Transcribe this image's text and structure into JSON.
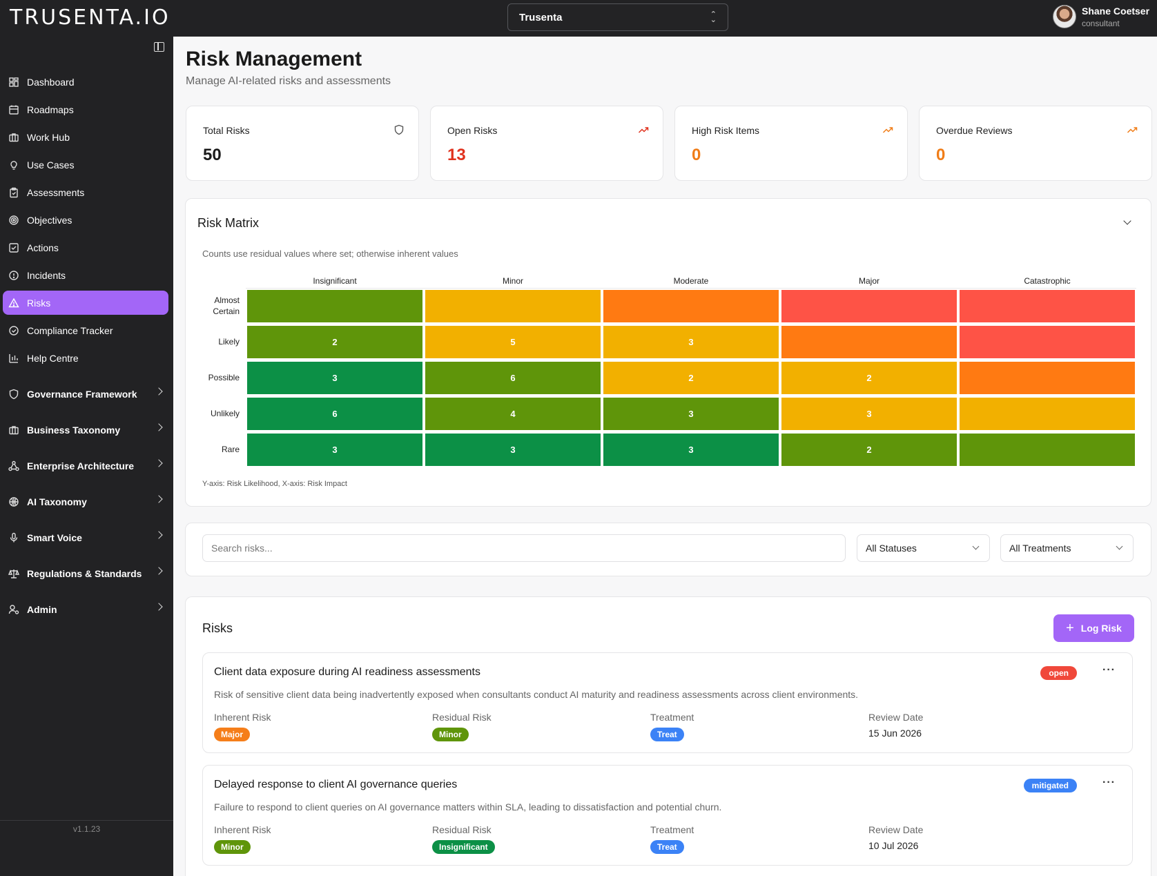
{
  "app": {
    "logo": "TRUSENTA.IO",
    "org_selector": "Trusenta",
    "version": "v1.1.23"
  },
  "user": {
    "name": "Shane Coetser",
    "role": "consultant"
  },
  "sidebar": {
    "items": [
      {
        "label": "Dashboard",
        "icon": "dashboard-icon"
      },
      {
        "label": "Roadmaps",
        "icon": "calendar-icon"
      },
      {
        "label": "Work Hub",
        "icon": "briefcase-icon"
      },
      {
        "label": "Use Cases",
        "icon": "lightbulb-icon"
      },
      {
        "label": "Assessments",
        "icon": "clipboard-icon"
      },
      {
        "label": "Objectives",
        "icon": "target-icon"
      },
      {
        "label": "Actions",
        "icon": "checkbox-icon"
      },
      {
        "label": "Incidents",
        "icon": "alert-circle-icon"
      },
      {
        "label": "Risks",
        "icon": "warning-triangle-icon",
        "active": true
      },
      {
        "label": "Compliance Tracker",
        "icon": "check-circle-icon"
      },
      {
        "label": "Help Centre",
        "icon": "bar-chart-icon"
      }
    ],
    "groups": [
      {
        "label": "Governance Framework",
        "icon": "shield-icon"
      },
      {
        "label": "Business Taxonomy",
        "icon": "briefcase-icon"
      },
      {
        "label": "Enterprise Architecture",
        "icon": "network-icon"
      },
      {
        "label": "AI Taxonomy",
        "icon": "globe-icon"
      },
      {
        "label": "Smart Voice",
        "icon": "microphone-icon"
      },
      {
        "label": "Regulations & Standards",
        "icon": "scale-icon"
      },
      {
        "label": "Admin",
        "icon": "user-cog-icon"
      }
    ]
  },
  "page": {
    "title": "Risk Management",
    "subtitle": "Manage AI-related risks and assessments"
  },
  "stats": [
    {
      "label": "Total Risks",
      "value": "50",
      "color": "#1a1a1a",
      "icon": "shield-icon"
    },
    {
      "label": "Open Risks",
      "value": "13",
      "color": "#e0321e",
      "icon": "trending-up-icon"
    },
    {
      "label": "High Risk Items",
      "value": "0",
      "color": "#f07d18",
      "icon": "trending-up-icon"
    },
    {
      "label": "Overdue Reviews",
      "value": "0",
      "color": "#f07d18",
      "icon": "trending-up-icon"
    }
  ],
  "matrix": {
    "title": "Risk Matrix",
    "note": "Counts use residual values where set; otherwise inherent values",
    "axis_note": "Y-axis: Risk Likelihood, X-axis: Risk Impact",
    "columns": [
      "Insignificant",
      "Minor",
      "Moderate",
      "Major",
      "Catastrophic"
    ],
    "rows": [
      {
        "label": "Almost Certain",
        "cells": [
          {
            "value": "",
            "color": "#5f950a"
          },
          {
            "value": "",
            "color": "#f2b000"
          },
          {
            "value": "",
            "color": "#ff7a12"
          },
          {
            "value": "",
            "color": "#fe5346"
          },
          {
            "value": "",
            "color": "#fe5346"
          }
        ]
      },
      {
        "label": "Likely",
        "cells": [
          {
            "value": "2",
            "color": "#5f950a"
          },
          {
            "value": "5",
            "color": "#f2b000"
          },
          {
            "value": "3",
            "color": "#f2b000"
          },
          {
            "value": "",
            "color": "#ff7a12"
          },
          {
            "value": "",
            "color": "#fe5346"
          }
        ]
      },
      {
        "label": "Possible",
        "cells": [
          {
            "value": "3",
            "color": "#0c9046"
          },
          {
            "value": "6",
            "color": "#5f950a"
          },
          {
            "value": "2",
            "color": "#f2b000"
          },
          {
            "value": "2",
            "color": "#f2b000"
          },
          {
            "value": "",
            "color": "#ff7a12"
          }
        ]
      },
      {
        "label": "Unlikely",
        "cells": [
          {
            "value": "6",
            "color": "#0c9046"
          },
          {
            "value": "4",
            "color": "#5f950a"
          },
          {
            "value": "3",
            "color": "#5f950a"
          },
          {
            "value": "3",
            "color": "#f2b000"
          },
          {
            "value": "",
            "color": "#f2b000"
          }
        ]
      },
      {
        "label": "Rare",
        "cells": [
          {
            "value": "3",
            "color": "#0c9046"
          },
          {
            "value": "3",
            "color": "#0c9046"
          },
          {
            "value": "3",
            "color": "#0c9046"
          },
          {
            "value": "2",
            "color": "#5f950a"
          },
          {
            "value": "",
            "color": "#5f950a"
          }
        ]
      }
    ]
  },
  "filters": {
    "search_placeholder": "Search risks...",
    "status": "All Statuses",
    "treatment": "All Treatments"
  },
  "risks": {
    "title": "Risks",
    "log_button": "Log Risk",
    "field_labels": {
      "inherent": "Inherent Risk",
      "residual": "Residual Risk",
      "treatment": "Treatment",
      "review": "Review Date"
    },
    "items": [
      {
        "title": "Client data exposure during AI readiness assessments",
        "description": "Risk of sensitive client data being inadvertently exposed when consultants conduct AI maturity and readiness assessments across client environments.",
        "status": "open",
        "status_color": "#f0483a",
        "inherent": "Major",
        "inherent_color": "#f57e1a",
        "residual": "Minor",
        "residual_color": "#5f950a",
        "treatment": "Treat",
        "treatment_color": "#3b82f6",
        "review_date": "15 Jun 2026"
      },
      {
        "title": "Delayed response to client AI governance queries",
        "description": "Failure to respond to client queries on AI governance matters within SLA, leading to dissatisfaction and potential churn.",
        "status": "mitigated",
        "status_color": "#3b82f6",
        "inherent": "Minor",
        "inherent_color": "#5f950a",
        "residual": "Insignificant",
        "residual_color": "#0c9046",
        "treatment": "Treat",
        "treatment_color": "#3b82f6",
        "review_date": "10 Jul 2026"
      }
    ]
  }
}
